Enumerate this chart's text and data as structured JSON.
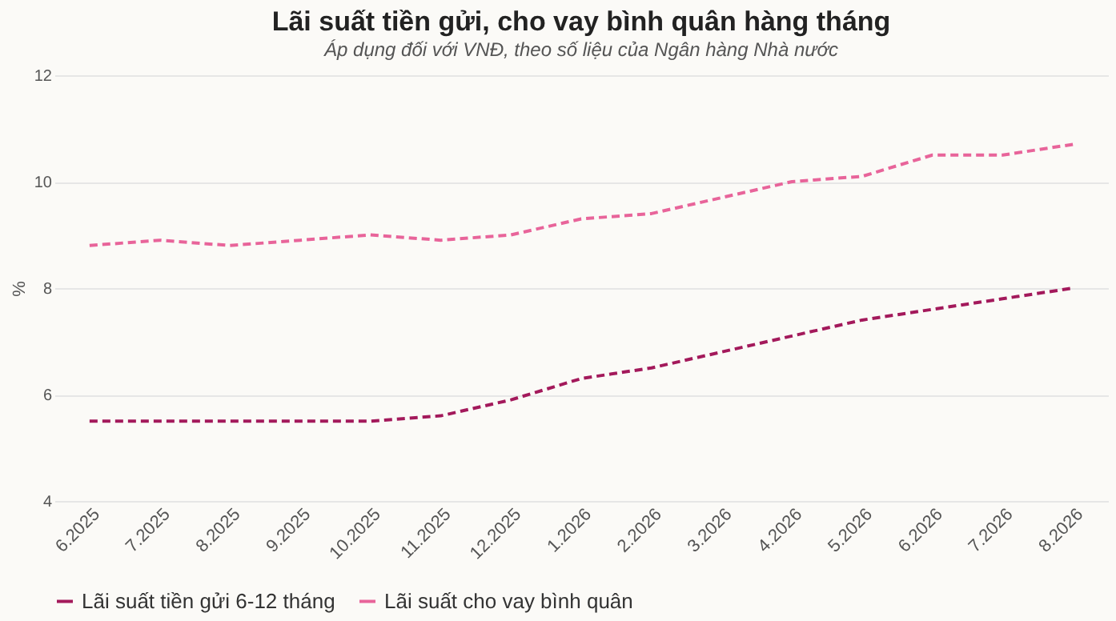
{
  "chart_data": {
    "type": "line",
    "title": "Lãi suất tiền gửi, cho vay bình quân hàng tháng",
    "subtitle": "Áp dụng đối với VNĐ, theo số liệu của Ngân hàng Nhà nước",
    "ylabel": "%",
    "categories": [
      "6.2025",
      "7.2025",
      "8.2025",
      "9.2025",
      "10.2025",
      "11.2025",
      "12.2025",
      "1.2026",
      "2.2026",
      "3.2026",
      "4.2026",
      "5.2026",
      "6.2026",
      "7.2026",
      "8.2026"
    ],
    "series": [
      {
        "name": "Lãi suất tiền gửi 6-12 tháng",
        "color": "#a3195b",
        "values": [
          5.5,
          5.5,
          5.5,
          5.5,
          5.5,
          5.6,
          5.9,
          6.3,
          6.5,
          6.8,
          7.1,
          7.4,
          7.6,
          7.8,
          8.0
        ]
      },
      {
        "name": "Lãi suất cho vay bình quân",
        "color": "#e8649a",
        "values": [
          8.8,
          8.9,
          8.8,
          8.9,
          9.0,
          8.9,
          9.0,
          9.3,
          9.4,
          9.7,
          10.0,
          10.1,
          10.5,
          10.5,
          10.7
        ]
      }
    ],
    "ylim": [
      4,
      12
    ],
    "yticks": [
      4,
      6,
      8,
      10,
      12
    ],
    "grid": "y",
    "legend": "bottom",
    "line_style": "dashed",
    "marker": "none"
  }
}
